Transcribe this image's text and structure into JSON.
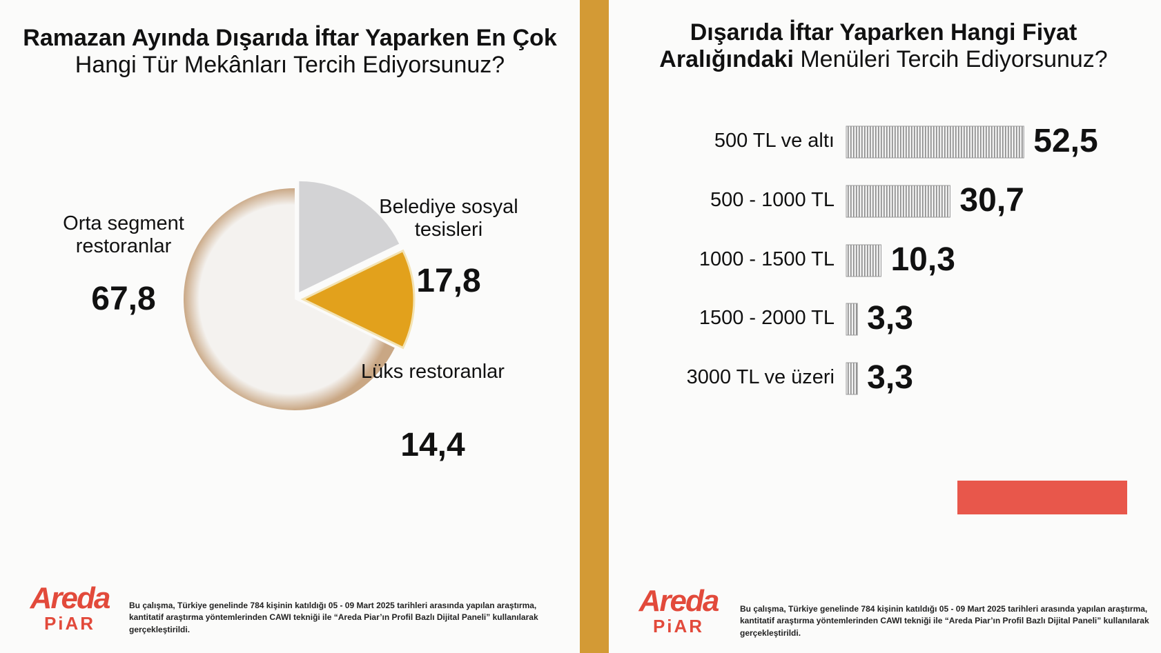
{
  "chart_data": [
    {
      "type": "pie",
      "title": {
        "bold": "Ramazan Ayında Dışarıda İftar Yaparken En Çok",
        "regular": "Hangi Tür Mekânları Tercih Ediyorsunuz?"
      },
      "categories": [
        "Orta segment restoranlar",
        "Belediye sosyal tesisleri",
        "Lüks restoranlar"
      ],
      "values": [
        67.8,
        17.8,
        14.4
      ],
      "value_labels": [
        "67,8",
        "17,8",
        "14,4"
      ],
      "colors": [
        "#f4f2ef",
        "#d3d3d5",
        "#e2a11c"
      ]
    },
    {
      "type": "hbar",
      "title": {
        "bold": "Dışarıda İftar Yaparken Hangi Fiyat Aralığındaki",
        "regular": "Menüleri Tercih Ediyorsunuz?"
      },
      "categories": [
        "500 TL ve altı",
        "500 - 1000 TL",
        "1000 - 1500 TL",
        "1500 - 2000 TL",
        "3000 TL ve üzeri"
      ],
      "values": [
        52.5,
        30.7,
        10.3,
        3.3,
        3.3
      ],
      "value_labels": [
        "52,5",
        "30,7",
        "10,3",
        "3,3",
        "3,3"
      ],
      "color": "#9a9a9a"
    }
  ],
  "footer": {
    "logo_top": "Areda",
    "logo_bottom": "PiAR",
    "note": "Bu çalışma, Türkiye genelinde 784 kişinin katıldığı 05 - 09 Mart 2025 tarihleri arasında yapılan araştırma, kantitatif araştırma yöntemlerinden CAWI tekniği ile “Areda Piar’ın Profil Bazlı Dijital Paneli” kullanılarak gerçekleştirildi."
  }
}
